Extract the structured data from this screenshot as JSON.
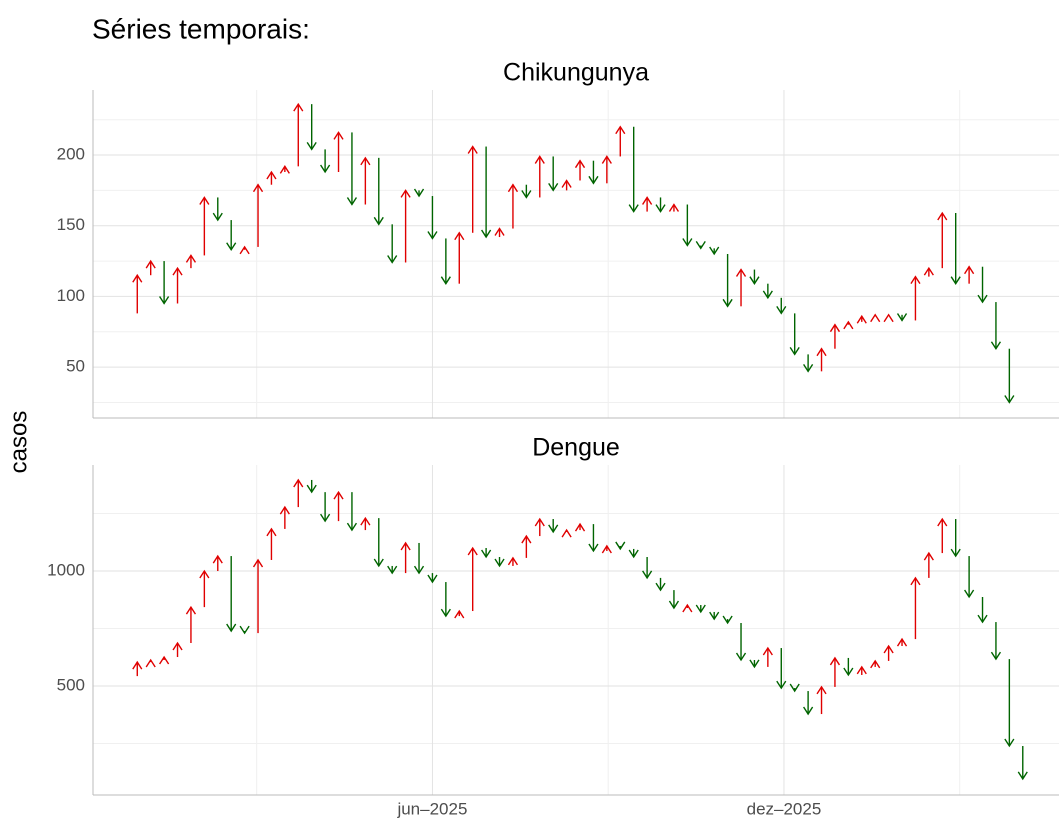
{
  "title": "Séries temporais:",
  "ylabel": "casos",
  "up_color": "#e00000",
  "down_color": "#006400",
  "chart_data": [
    {
      "type": "arrow",
      "title": "Chikungunya",
      "start": 88,
      "x": [
        0,
        1,
        2,
        3,
        4,
        5,
        6,
        7,
        8,
        9,
        10,
        11,
        12,
        13,
        14,
        15,
        16,
        17,
        18,
        19,
        20,
        21,
        22,
        23,
        24,
        25,
        26,
        27,
        28,
        29,
        30,
        31,
        32,
        33,
        34,
        35,
        36,
        37,
        38,
        39,
        40,
        41,
        42,
        43,
        44,
        45,
        46,
        47,
        48,
        49,
        50,
        51,
        52,
        53,
        54,
        55,
        56,
        57,
        58,
        59,
        60,
        61,
        62,
        63,
        64,
        65
      ],
      "values": [
        115,
        125,
        95,
        120,
        129,
        170,
        154,
        133,
        135,
        179,
        188,
        192,
        236,
        204,
        188,
        216,
        165,
        198,
        151,
        124,
        175,
        171,
        141,
        109,
        145,
        206,
        142,
        148,
        179,
        170,
        199,
        175,
        182,
        196,
        180,
        199,
        220,
        160,
        170,
        160,
        165,
        136,
        134,
        130,
        93,
        119,
        109,
        99,
        88,
        59,
        47,
        63,
        80,
        82,
        86,
        87,
        87,
        83,
        114,
        120,
        159,
        109,
        121,
        96,
        63,
        25
      ],
      "xlim": [
        -3.3,
        68.7
      ],
      "ylim": [
        14,
        246
      ],
      "yticks": [
        50,
        100,
        150,
        200
      ]
    },
    {
      "type": "arrow",
      "title": "Dengue",
      "start": 543,
      "x": [
        0,
        1,
        2,
        3,
        4,
        5,
        6,
        7,
        8,
        9,
        10,
        11,
        12,
        13,
        14,
        15,
        16,
        17,
        18,
        19,
        20,
        21,
        22,
        23,
        24,
        25,
        26,
        27,
        28,
        29,
        30,
        31,
        32,
        33,
        34,
        35,
        36,
        37,
        38,
        39,
        40,
        41,
        42,
        43,
        44,
        45,
        46,
        47,
        48,
        49,
        50,
        51,
        52,
        53,
        54,
        55,
        56,
        57,
        58,
        59,
        60,
        61,
        62,
        63,
        64,
        65,
        66
      ],
      "values": [
        604,
        613,
        626,
        687,
        843,
        1000,
        1065,
        739,
        730,
        1048,
        1183,
        1278,
        1396,
        1343,
        1217,
        1343,
        1178,
        1230,
        1022,
        991,
        1122,
        991,
        952,
        804,
        826,
        1100,
        1061,
        1022,
        1057,
        1152,
        1226,
        1170,
        1178,
        1204,
        1087,
        1109,
        1096,
        1061,
        970,
        917,
        839,
        852,
        822,
        791,
        774,
        613,
        583,
        665,
        491,
        478,
        378,
        496,
        622,
        548,
        583,
        609,
        674,
        704,
        970,
        1078,
        1226,
        1065,
        887,
        778,
        617,
        239,
        96
      ],
      "xlim": [
        -3.3,
        68.7
      ],
      "ylim": [
        26,
        1461
      ],
      "yticks": [
        500,
        1000
      ],
      "xticks": [
        {
          "value": 22,
          "label": "jun–2025"
        },
        {
          "value": 48.2,
          "label": "dez–2025"
        }
      ]
    }
  ]
}
